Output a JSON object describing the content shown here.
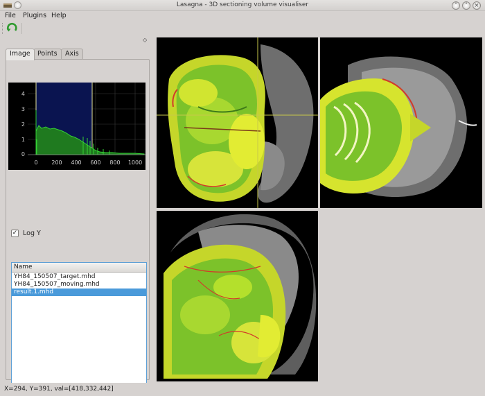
{
  "window": {
    "title": "Lasagna - 3D sectioning volume visualiser"
  },
  "menu": {
    "items": [
      {
        "label": "File"
      },
      {
        "label": "Plugins"
      },
      {
        "label": "Help"
      }
    ]
  },
  "toolbar": {
    "buttons": [
      {
        "icon": "refresh-icon"
      }
    ]
  },
  "dock": {
    "tabs": [
      {
        "label": "Image",
        "active": true
      },
      {
        "label": "Points",
        "active": false
      },
      {
        "label": "Axis",
        "active": false
      }
    ],
    "histogram": {
      "y_ticks": [
        "4",
        "3",
        "2",
        "1",
        "0"
      ],
      "x_ticks": [
        "0",
        "200",
        "400",
        "600",
        "800",
        "1000"
      ],
      "colors": {
        "background": "#000000",
        "selection": "#0a1450",
        "fill": "#1f7a1f",
        "line": "#35d135",
        "marker": "#e6e6a0"
      }
    },
    "log_y": {
      "label": "Log Y",
      "checked": true
    },
    "file_list": {
      "header": "Name",
      "rows": [
        {
          "label": "YH84_150507_target.mhd",
          "selected": false
        },
        {
          "label": "YH84_150507_moving.mhd",
          "selected": false
        },
        {
          "label": "result.1.mhd",
          "selected": true
        }
      ]
    }
  },
  "views": [
    {
      "name": "coronal-view",
      "crosshair": true
    },
    {
      "name": "axial-view",
      "crosshair": false
    },
    {
      "name": "sagittal-view",
      "crosshair": false
    }
  ],
  "status": {
    "text": "X=294, Y=391, val=[418,332,442]"
  },
  "colors": {
    "accent": "#4a9ada",
    "overlay_yellow": "#e5ee1e",
    "overlay_green": "#5fcf2a",
    "overlay_red": "#d23a2a"
  }
}
